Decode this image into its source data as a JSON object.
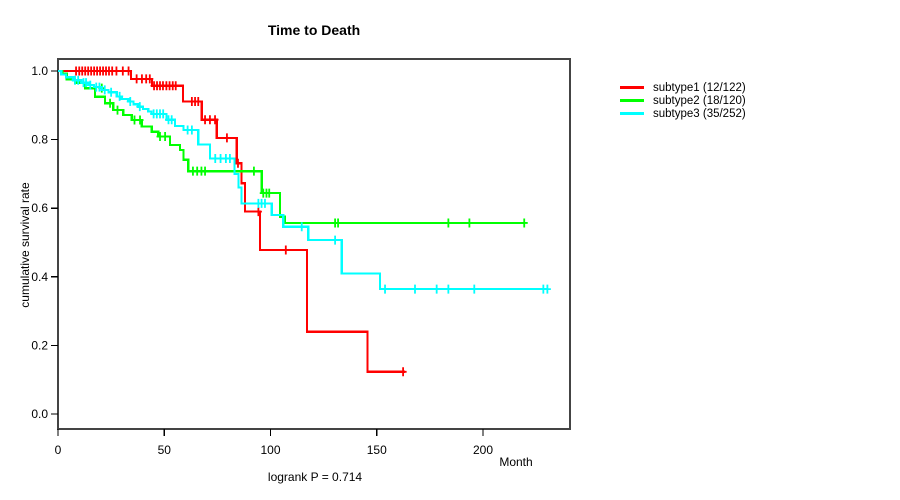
{
  "page": {
    "background": "#ffffff"
  },
  "chart_data": {
    "type": "line",
    "subtype": "kaplan-meier-step",
    "title": "Time to Death",
    "xlabel": "Month",
    "ylabel": "cumulative survival rate",
    "annotation": "logrank P = 0.714",
    "x_ticks": [
      0,
      50,
      100,
      150,
      200
    ],
    "y_ticks": [
      0.0,
      0.2,
      0.4,
      0.6,
      0.8,
      1.0
    ],
    "xlim": [
      0,
      241
    ],
    "ylim": [
      0,
      1
    ],
    "grid": false,
    "legend_position": "right",
    "frame_color": "#444444",
    "series": [
      {
        "name": "subtype1",
        "label": "subtype1 (12/122)",
        "color": "#ff0000",
        "end": 163.3,
        "steps": [
          [
            0,
            1.0
          ],
          [
            34.4,
            0.977
          ],
          [
            44.2,
            0.957
          ],
          [
            58.8,
            0.911
          ],
          [
            67.6,
            0.858
          ],
          [
            74.7,
            0.805
          ],
          [
            84.1,
            0.731
          ],
          [
            86.4,
            0.673
          ],
          [
            88,
            0.59
          ],
          [
            95,
            0.478
          ],
          [
            117.2,
            0.24
          ],
          [
            145.6,
            0.123
          ]
        ],
        "censors": [
          [
            8.5,
            1
          ],
          [
            10,
            1
          ],
          [
            11.4,
            1
          ],
          [
            12.8,
            1
          ],
          [
            14.2,
            1
          ],
          [
            15.6,
            1
          ],
          [
            17,
            1
          ],
          [
            18.4,
            1
          ],
          [
            19.8,
            1
          ],
          [
            21.2,
            1
          ],
          [
            22.6,
            1
          ],
          [
            24,
            1
          ],
          [
            25.5,
            1
          ],
          [
            27.5,
            1
          ],
          [
            30.5,
            1
          ],
          [
            33.2,
            1
          ],
          [
            37,
            0.977
          ],
          [
            39.5,
            0.977
          ],
          [
            41.5,
            0.977
          ],
          [
            43.2,
            0.977
          ],
          [
            45.2,
            0.957
          ],
          [
            46.6,
            0.957
          ],
          [
            48,
            0.957
          ],
          [
            49.4,
            0.957
          ],
          [
            51,
            0.957
          ],
          [
            52.5,
            0.957
          ],
          [
            54,
            0.957
          ],
          [
            55.4,
            0.957
          ],
          [
            63,
            0.911
          ],
          [
            64.5,
            0.911
          ],
          [
            66,
            0.911
          ],
          [
            69.2,
            0.858
          ],
          [
            71.5,
            0.858
          ],
          [
            73.9,
            0.858
          ],
          [
            79.5,
            0.805
          ],
          [
            84.7,
            0.731
          ],
          [
            94.3,
            0.59
          ],
          [
            107.2,
            0.478
          ],
          [
            162.4,
            0.123
          ]
        ]
      },
      {
        "name": "subtype2",
        "label": "subtype2 (18/120)",
        "color": "#00ff00",
        "end": 219.8,
        "steps": [
          [
            0,
            1.0
          ],
          [
            2,
            0.992
          ],
          [
            4.1,
            0.975
          ],
          [
            8,
            0.966
          ],
          [
            12.7,
            0.95
          ],
          [
            17.4,
            0.925
          ],
          [
            22.1,
            0.906
          ],
          [
            26,
            0.886
          ],
          [
            30.7,
            0.872
          ],
          [
            34.7,
            0.857
          ],
          [
            39.4,
            0.838
          ],
          [
            44.1,
            0.823
          ],
          [
            47.2,
            0.809
          ],
          [
            52.7,
            0.784
          ],
          [
            57.4,
            0.77
          ],
          [
            59,
            0.741
          ],
          [
            61.3,
            0.708
          ],
          [
            95.9,
            0.644
          ],
          [
            104.5,
            0.575
          ],
          [
            106.8,
            0.557
          ]
        ],
        "censors": [
          [
            20.6,
            0.95
          ],
          [
            24.5,
            0.906
          ],
          [
            28,
            0.886
          ],
          [
            36,
            0.857
          ],
          [
            38.6,
            0.857
          ],
          [
            48,
            0.809
          ],
          [
            50.4,
            0.809
          ],
          [
            63.5,
            0.708
          ],
          [
            65.5,
            0.708
          ],
          [
            67.5,
            0.708
          ],
          [
            69.2,
            0.708
          ],
          [
            92.2,
            0.708
          ],
          [
            96.6,
            0.644
          ],
          [
            98.1,
            0.644
          ],
          [
            99.4,
            0.644
          ],
          [
            130.4,
            0.557
          ],
          [
            131.8,
            0.557
          ],
          [
            183.7,
            0.557
          ],
          [
            193.6,
            0.557
          ],
          [
            219.4,
            0.557
          ]
        ]
      },
      {
        "name": "subtype3",
        "label": "subtype3 (35/252)",
        "color": "#00ffff",
        "end": 230.7,
        "steps": [
          [
            0,
            1.0
          ],
          [
            1.5,
            0.99
          ],
          [
            3.8,
            0.982
          ],
          [
            7.2,
            0.973
          ],
          [
            11,
            0.966
          ],
          [
            14.3,
            0.959
          ],
          [
            17,
            0.953
          ],
          [
            20.6,
            0.945
          ],
          [
            23.7,
            0.938
          ],
          [
            27.6,
            0.926
          ],
          [
            30,
            0.918
          ],
          [
            33.1,
            0.911
          ],
          [
            35.5,
            0.903
          ],
          [
            37.8,
            0.896
          ],
          [
            40,
            0.889
          ],
          [
            42.5,
            0.882
          ],
          [
            44,
            0.875
          ],
          [
            51.1,
            0.858
          ],
          [
            55,
            0.84
          ],
          [
            59,
            0.828
          ],
          [
            66,
            0.786
          ],
          [
            71.5,
            0.745
          ],
          [
            83,
            0.7
          ],
          [
            85,
            0.66
          ],
          [
            86.4,
            0.614
          ],
          [
            100.6,
            0.58
          ],
          [
            106,
            0.546
          ],
          [
            117.8,
            0.507
          ],
          [
            133.5,
            0.41
          ],
          [
            151.5,
            0.364
          ]
        ],
        "censors": [
          [
            8,
            0.973
          ],
          [
            9.5,
            0.973
          ],
          [
            12,
            0.966
          ],
          [
            13.2,
            0.966
          ],
          [
            15.2,
            0.959
          ],
          [
            18,
            0.953
          ],
          [
            19.5,
            0.953
          ],
          [
            22,
            0.945
          ],
          [
            25,
            0.938
          ],
          [
            29,
            0.926
          ],
          [
            34,
            0.911
          ],
          [
            38.5,
            0.896
          ],
          [
            45,
            0.875
          ],
          [
            46.5,
            0.875
          ],
          [
            48,
            0.875
          ],
          [
            49.5,
            0.875
          ],
          [
            52,
            0.858
          ],
          [
            53.5,
            0.858
          ],
          [
            61,
            0.828
          ],
          [
            63,
            0.828
          ],
          [
            74,
            0.745
          ],
          [
            76.5,
            0.745
          ],
          [
            79,
            0.745
          ],
          [
            80.9,
            0.745
          ],
          [
            94.3,
            0.614
          ],
          [
            95.8,
            0.614
          ],
          [
            97.4,
            0.614
          ],
          [
            114.7,
            0.546
          ],
          [
            130.4,
            0.507
          ],
          [
            153.9,
            0.364
          ],
          [
            168,
            0.364
          ],
          [
            178.2,
            0.364
          ],
          [
            183.7,
            0.364
          ],
          [
            195.9,
            0.364
          ],
          [
            228.4,
            0.364
          ],
          [
            230.3,
            0.364
          ]
        ]
      }
    ]
  }
}
